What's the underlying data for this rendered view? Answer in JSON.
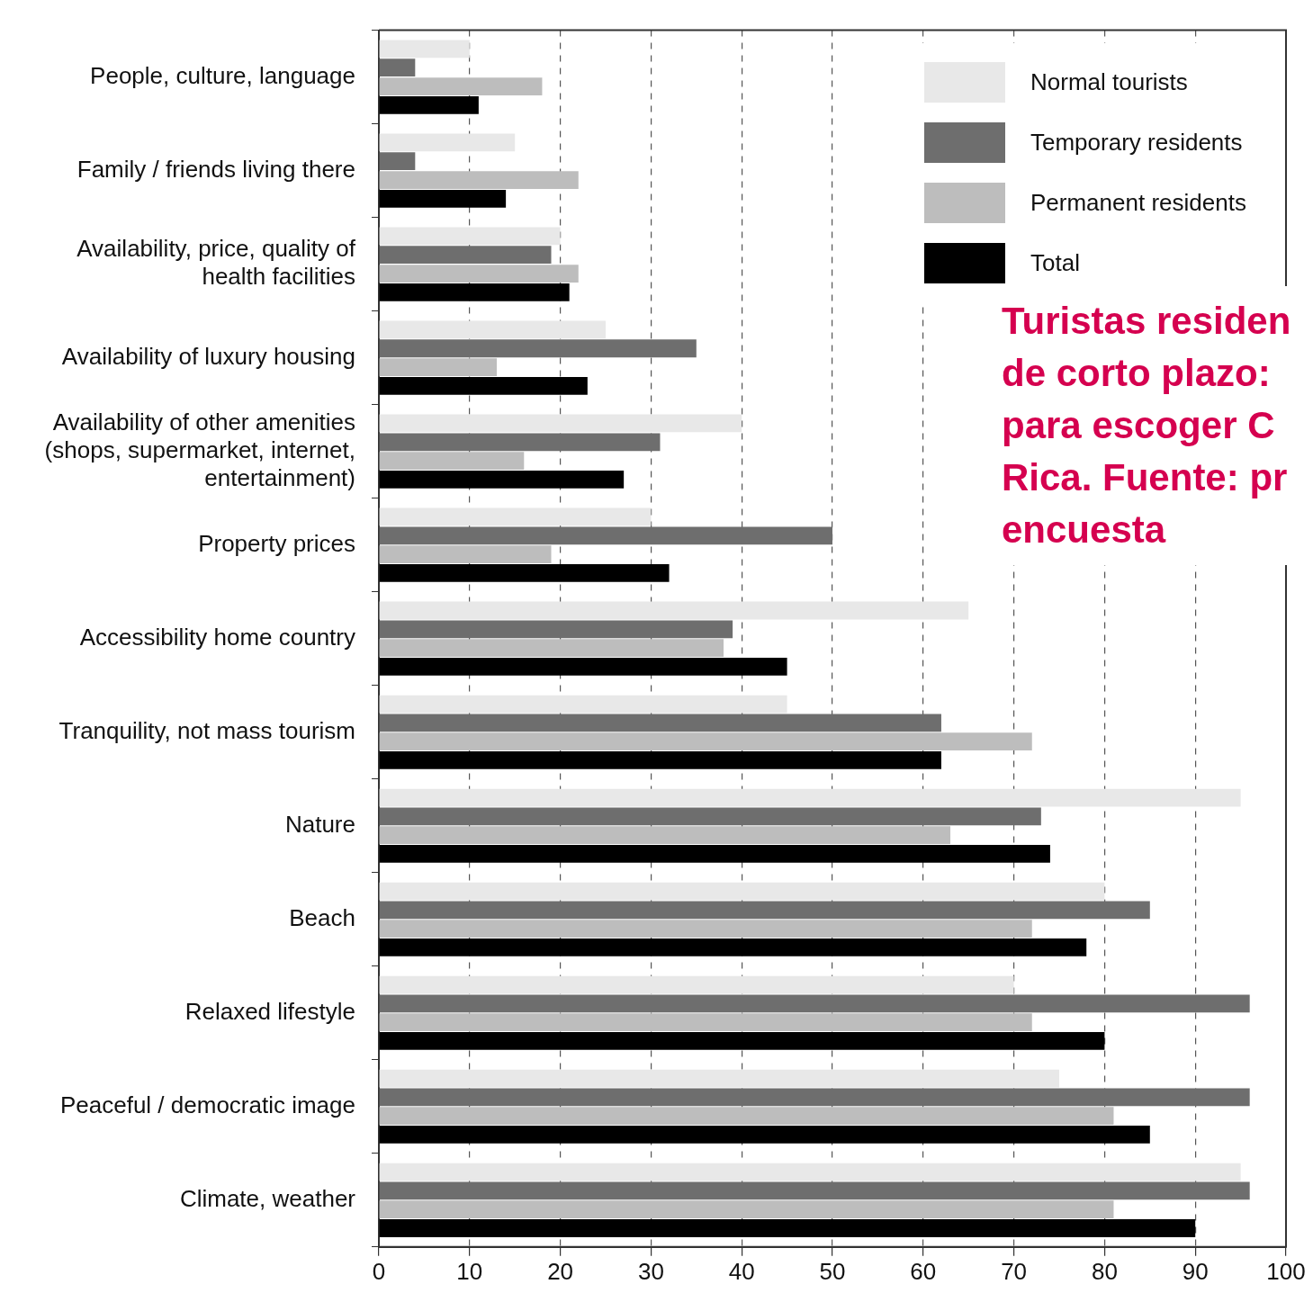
{
  "chart_data": {
    "type": "bar",
    "orientation": "horizontal",
    "categories": [
      "People, culture, language",
      "Family / friends living there",
      "Availability, price, quality of health facilities",
      "Availability of luxury housing",
      "Availability of other amenities (shops, supermarket, internet, entertainment)",
      "Property prices",
      "Accessibility home country",
      "Tranquility, not mass tourism",
      "Nature",
      "Beach",
      "Relaxed lifestyle",
      "Peaceful / democratic image",
      "Climate, weather"
    ],
    "series": [
      {
        "name": "Normal tourists",
        "color": "#e8e8e8",
        "values": [
          10,
          15,
          20,
          25,
          40,
          30,
          65,
          45,
          95,
          80,
          70,
          75,
          95
        ]
      },
      {
        "name": "Temporary residents",
        "color": "#6e6e6e",
        "values": [
          4,
          4,
          19,
          35,
          31,
          50,
          39,
          62,
          73,
          85,
          96,
          96,
          96
        ]
      },
      {
        "name": "Permanent residents",
        "color": "#bdbdbd",
        "values": [
          18,
          22,
          22,
          13,
          16,
          19,
          38,
          72,
          63,
          72,
          72,
          81,
          81
        ]
      },
      {
        "name": "Total",
        "color": "#000000",
        "values": [
          11,
          14,
          21,
          23,
          27,
          32,
          45,
          62,
          74,
          78,
          80,
          85,
          90
        ]
      }
    ],
    "xlim": [
      0,
      100
    ],
    "xticks": [
      0,
      10,
      20,
      30,
      40,
      50,
      60,
      70,
      80,
      90,
      100
    ],
    "grid": "x",
    "legend": "top right",
    "annotations": [
      "Turistas residen\nde corto plazo:\npara escoger C\nRica. Fuente: pr\nencuesta"
    ]
  }
}
